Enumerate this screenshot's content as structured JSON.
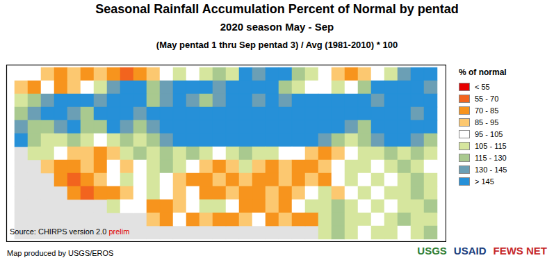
{
  "chart_data": {
    "type": "heatmap",
    "title": "Seasonal Rainfall Accumulation Percent of Normal by pentad",
    "subtitle": "2020 season May - Sep",
    "period_note": "(May pentad 1 thru Sep pentad 3) / Avg (1981-2010) * 100",
    "tick_labels": false,
    "color_bar": {
      "title": "% of normal",
      "thresholds": [
        55,
        70,
        85,
        95,
        105,
        115,
        130,
        145
      ],
      "labels": [
        "< 55",
        "55 - 70",
        "70 - 85",
        "85 - 95",
        "95 - 105",
        "105 - 115",
        "115 - 130",
        "130 - 145",
        "> 145"
      ],
      "colors": [
        "#e60000",
        "#f2641e",
        "#f7941d",
        "#fcc870",
        "#ffffff",
        "#d6e69e",
        "#a9c98f",
        "#6b9fb5",
        "#2690d8"
      ]
    },
    "cells": [
      [
        100,
        100,
        90,
        78,
        90,
        78,
        90,
        78,
        62,
        78,
        90,
        100,
        110,
        100,
        110,
        122,
        110,
        150,
        138,
        150,
        150,
        122,
        110,
        100,
        90,
        78,
        90,
        100,
        110,
        138,
        150,
        150
      ],
      [
        90,
        78,
        100,
        78,
        90,
        100,
        110,
        138,
        150,
        150,
        122,
        138,
        150,
        150,
        150,
        138,
        150,
        150,
        150,
        150,
        122,
        110,
        100,
        100,
        110,
        100,
        122,
        150,
        150,
        150,
        150,
        138
      ],
      [
        110,
        122,
        138,
        150,
        150,
        150,
        138,
        150,
        150,
        150,
        122,
        138,
        150,
        138,
        122,
        138,
        150,
        150,
        138,
        150,
        138,
        150,
        150,
        150,
        150,
        150,
        150,
        138,
        150,
        150,
        150,
        150
      ],
      [
        122,
        138,
        150,
        150,
        138,
        122,
        150,
        150,
        150,
        138,
        150,
        150,
        150,
        150,
        150,
        150,
        150,
        150,
        150,
        150,
        150,
        150,
        150,
        150,
        150,
        150,
        150,
        150,
        150,
        150,
        138,
        150
      ],
      [
        138,
        122,
        122,
        138,
        150,
        122,
        122,
        150,
        138,
        122,
        138,
        150,
        150,
        150,
        150,
        150,
        150,
        150,
        150,
        150,
        150,
        150,
        150,
        150,
        150,
        138,
        122,
        150,
        150,
        150,
        150,
        150
      ],
      [
        150,
        122,
        110,
        110,
        122,
        110,
        100,
        110,
        122,
        110,
        122,
        138,
        150,
        150,
        150,
        150,
        150,
        150,
        150,
        150,
        150,
        150,
        150,
        138,
        122,
        110,
        122,
        138,
        150,
        150,
        138,
        122
      ],
      [
        null,
        110,
        110,
        100,
        90,
        90,
        78,
        90,
        110,
        122,
        110,
        122,
        110,
        122,
        110,
        100,
        110,
        122,
        110,
        110,
        100,
        100,
        90,
        78,
        90,
        100,
        110,
        110,
        122,
        110,
        122,
        110
      ],
      [
        null,
        null,
        90,
        78,
        78,
        90,
        78,
        100,
        90,
        100,
        110,
        122,
        110,
        100,
        90,
        78,
        90,
        110,
        90,
        78,
        90,
        78,
        78,
        90,
        100,
        110,
        110,
        100,
        110,
        122,
        110,
        100
      ],
      [
        null,
        null,
        null,
        78,
        62,
        78,
        90,
        100,
        110,
        100,
        110,
        100,
        90,
        78,
        78,
        90,
        78,
        90,
        78,
        78,
        90,
        78,
        90,
        78,
        100,
        110,
        100,
        110,
        100,
        110,
        122,
        110
      ],
      [
        null,
        null,
        null,
        null,
        78,
        62,
        78,
        78,
        90,
        100,
        110,
        100,
        90,
        100,
        78,
        78,
        90,
        78,
        78,
        90,
        78,
        90,
        100,
        110,
        90,
        100,
        110,
        100,
        110,
        110,
        122,
        110
      ],
      [
        null,
        null,
        null,
        null,
        null,
        null,
        null,
        110,
        100,
        100,
        78,
        78,
        90,
        100,
        110,
        110,
        100,
        78,
        78,
        90,
        78,
        100,
        110,
        110,
        122,
        110,
        100,
        110,
        100,
        110,
        110,
        122
      ],
      [
        null,
        null,
        null,
        null,
        null,
        null,
        null,
        null,
        null,
        null,
        90,
        78,
        100,
        78,
        90,
        78,
        78,
        90,
        100,
        78,
        90,
        78,
        78,
        110,
        122,
        110,
        110,
        100,
        110,
        122,
        110,
        110
      ],
      [
        null,
        null,
        null,
        null,
        null,
        null,
        null,
        null,
        null,
        null,
        null,
        null,
        null,
        null,
        null,
        null,
        null,
        null,
        null,
        null,
        null,
        null,
        null,
        110,
        122,
        110,
        100,
        110,
        110,
        100,
        110,
        122
      ]
    ],
    "source": "Source: CHIRPS version 2.0",
    "source_status": "prelim",
    "credit": "Map produced by USGS/EROS",
    "logos": [
      "USGS",
      "USAID",
      "FEWS NET"
    ]
  }
}
